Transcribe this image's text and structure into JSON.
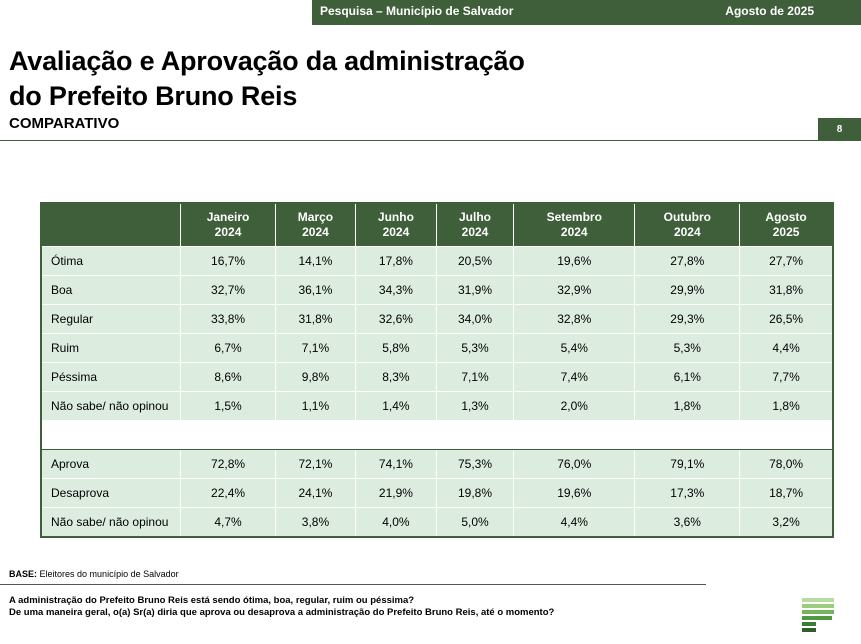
{
  "header": {
    "survey": "Pesquisa – Município de Salvador",
    "date": "Agosto de 2025",
    "page": "8"
  },
  "title": {
    "line1": "Avaliação e Aprovação da administração",
    "line2": "do Prefeito Bruno Reis",
    "subtitle": "COMPARATIVO"
  },
  "table": {
    "columns": [
      {
        "month": "Janeiro",
        "year": "2024"
      },
      {
        "month": "Março",
        "year": "2024"
      },
      {
        "month": "Junho",
        "year": "2024"
      },
      {
        "month": "Julho",
        "year": "2024"
      },
      {
        "month": "Setembro",
        "year": "2024"
      },
      {
        "month": "Outubro",
        "year": "2024"
      },
      {
        "month": "Agosto",
        "year": "2025"
      }
    ],
    "sections": [
      {
        "rows": [
          {
            "label": "Ótima",
            "values": [
              "16,7%",
              "14,1%",
              "17,8%",
              "20,5%",
              "19,6%",
              "27,8%",
              "27,7%"
            ]
          },
          {
            "label": "Boa",
            "values": [
              "32,7%",
              "36,1%",
              "34,3%",
              "31,9%",
              "32,9%",
              "29,9%",
              "31,8%"
            ]
          },
          {
            "label": "Regular",
            "values": [
              "33,8%",
              "31,8%",
              "32,6%",
              "34,0%",
              "32,8%",
              "29,3%",
              "26,5%"
            ]
          },
          {
            "label": "Ruim",
            "values": [
              "6,7%",
              "7,1%",
              "5,8%",
              "5,3%",
              "5,4%",
              "5,3%",
              "4,4%"
            ]
          },
          {
            "label": "Péssima",
            "values": [
              "8,6%",
              "9,8%",
              "8,3%",
              "7,1%",
              "7,4%",
              "6,1%",
              "7,7%"
            ]
          },
          {
            "label": "Não sabe/ não opinou",
            "values": [
              "1,5%",
              "1,1%",
              "1,4%",
              "1,3%",
              "2,0%",
              "1,8%",
              "1,8%"
            ]
          }
        ]
      },
      {
        "rows": [
          {
            "label": "Aprova",
            "values": [
              "72,8%",
              "72,1%",
              "74,1%",
              "75,3%",
              "76,0%",
              "79,1%",
              "78,0%"
            ]
          },
          {
            "label": "Desaprova",
            "values": [
              "22,4%",
              "24,1%",
              "21,9%",
              "19,8%",
              "19,6%",
              "17,3%",
              "18,7%"
            ]
          },
          {
            "label": "Não sabe/ não opinou",
            "values": [
              "4,7%",
              "3,8%",
              "4,0%",
              "5,0%",
              "4,4%",
              "3,6%",
              "3,2%"
            ]
          }
        ]
      }
    ]
  },
  "footer": {
    "base_label": "BASE:",
    "base_text": "Eleitores do município de Salvador",
    "questions": [
      "A administração do Prefeito Bruno Reis está sendo ótima, boa, regular, ruim ou péssima?",
      "De uma maneira geral, o(a) Sr(a) diria que aprova ou desaprova a administração do Prefeito Bruno Reis, até o momento?"
    ]
  }
}
